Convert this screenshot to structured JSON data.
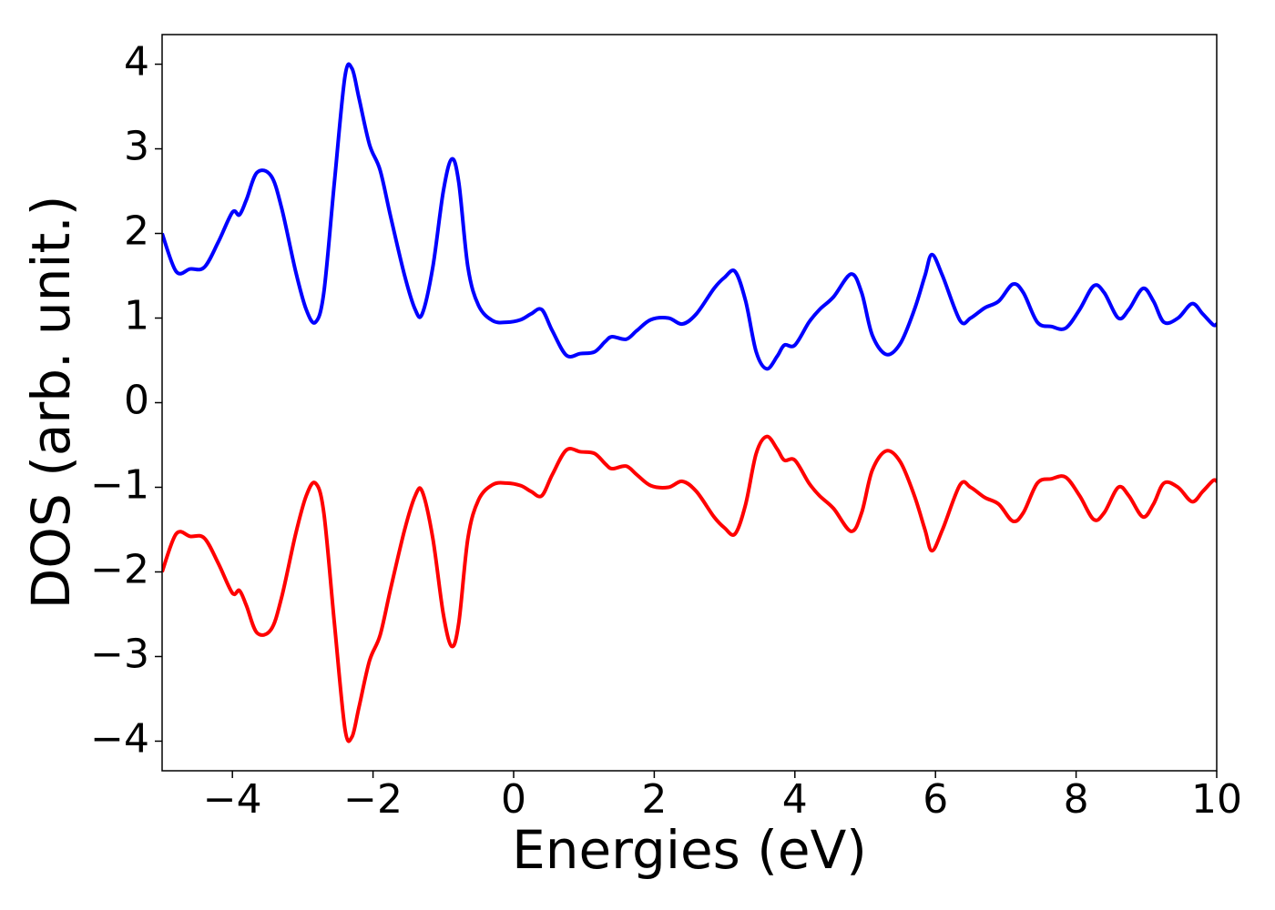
{
  "chart_data": {
    "type": "line",
    "x_label": "Energies (eV)",
    "y_label": "DOS (arb. unit.)",
    "x": [
      -5.0,
      -4.8,
      -4.6,
      -4.4,
      -4.2,
      -4.0,
      -3.9,
      -3.8,
      -3.65,
      -3.45,
      -3.3,
      -3.1,
      -2.95,
      -2.82,
      -2.7,
      -2.55,
      -2.4,
      -2.3,
      -2.2,
      -2.05,
      -1.9,
      -1.75,
      -1.55,
      -1.4,
      -1.3,
      -1.15,
      -1.0,
      -0.88,
      -0.78,
      -0.65,
      -0.5,
      -0.3,
      -0.1,
      0.1,
      0.25,
      0.4,
      0.55,
      0.75,
      0.95,
      1.15,
      1.3,
      1.4,
      1.6,
      1.75,
      1.95,
      2.2,
      2.4,
      2.6,
      2.85,
      3.0,
      3.15,
      3.3,
      3.45,
      3.6,
      3.75,
      3.85,
      4.0,
      4.2,
      4.35,
      4.55,
      4.8,
      4.95,
      5.1,
      5.3,
      5.5,
      5.7,
      5.85,
      5.95,
      6.1,
      6.35,
      6.5,
      6.7,
      6.9,
      7.1,
      7.25,
      7.45,
      7.65,
      7.85,
      8.05,
      8.25,
      8.4,
      8.6,
      8.75,
      8.95,
      9.1,
      9.25,
      9.45,
      9.65,
      9.8,
      9.95,
      10.0
    ],
    "series": [
      {
        "color": "#0000ff",
        "values": [
          2.0,
          1.55,
          1.58,
          1.6,
          1.9,
          2.25,
          2.22,
          2.4,
          2.72,
          2.68,
          2.3,
          1.55,
          1.1,
          0.95,
          1.3,
          2.6,
          3.85,
          3.95,
          3.6,
          3.05,
          2.75,
          2.2,
          1.5,
          1.1,
          1.05,
          1.6,
          2.5,
          2.88,
          2.6,
          1.6,
          1.15,
          0.97,
          0.95,
          0.98,
          1.05,
          1.1,
          0.85,
          0.56,
          0.58,
          0.6,
          0.72,
          0.78,
          0.75,
          0.85,
          0.98,
          1.0,
          0.93,
          1.05,
          1.35,
          1.48,
          1.55,
          1.2,
          0.6,
          0.4,
          0.55,
          0.68,
          0.68,
          0.95,
          1.1,
          1.25,
          1.52,
          1.3,
          0.8,
          0.57,
          0.7,
          1.1,
          1.5,
          1.75,
          1.5,
          0.97,
          1.0,
          1.12,
          1.2,
          1.4,
          1.3,
          0.95,
          0.9,
          0.88,
          1.1,
          1.38,
          1.3,
          1.0,
          1.1,
          1.35,
          1.2,
          0.95,
          1.0,
          1.17,
          1.05,
          0.92,
          0.93
        ]
      },
      {
        "color": "#ff0000",
        "values": [
          -2.0,
          -1.55,
          -1.58,
          -1.6,
          -1.9,
          -2.25,
          -2.22,
          -2.4,
          -2.72,
          -2.68,
          -2.3,
          -1.55,
          -1.1,
          -0.95,
          -1.3,
          -2.6,
          -3.85,
          -3.95,
          -3.6,
          -3.05,
          -2.75,
          -2.2,
          -1.5,
          -1.1,
          -1.05,
          -1.6,
          -2.5,
          -2.88,
          -2.6,
          -1.6,
          -1.15,
          -0.97,
          -0.95,
          -0.98,
          -1.05,
          -1.1,
          -0.85,
          -0.56,
          -0.58,
          -0.6,
          -0.72,
          -0.78,
          -0.75,
          -0.85,
          -0.98,
          -1.0,
          -0.93,
          -1.05,
          -1.35,
          -1.48,
          -1.55,
          -1.2,
          -0.6,
          -0.4,
          -0.55,
          -0.68,
          -0.68,
          -0.95,
          -1.1,
          -1.25,
          -1.52,
          -1.3,
          -0.8,
          -0.57,
          -0.7,
          -1.1,
          -1.5,
          -1.75,
          -1.5,
          -0.97,
          -1.0,
          -1.12,
          -1.2,
          -1.4,
          -1.3,
          -0.95,
          -0.9,
          -0.88,
          -1.1,
          -1.38,
          -1.3,
          -1.0,
          -1.1,
          -1.35,
          -1.2,
          -0.95,
          -1.0,
          -1.17,
          -1.05,
          -0.92,
          -0.93
        ]
      }
    ],
    "xlim": [
      -5,
      10
    ],
    "xticks": [
      {
        "value": -4,
        "label": "−4"
      },
      {
        "value": -2,
        "label": "−2"
      },
      0,
      2,
      4,
      6,
      8,
      10
    ],
    "ylim": [
      -4.35,
      4.35
    ],
    "yticks": [
      {
        "value": -4,
        "label": "−4"
      },
      {
        "value": -3,
        "label": "−3"
      },
      {
        "value": -2,
        "label": "−2"
      },
      {
        "value": -1,
        "label": "−1"
      },
      0,
      1,
      2,
      3,
      4
    ]
  }
}
